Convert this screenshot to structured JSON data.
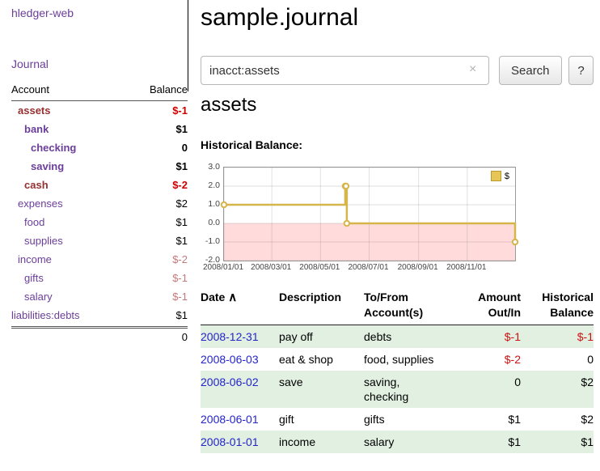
{
  "app": {
    "brand": "hledger-web",
    "nav": {
      "journal": "Journal"
    }
  },
  "sidebar": {
    "header": {
      "account": "Account",
      "balance": "Balance"
    },
    "accounts": [
      {
        "name": "assets",
        "indent": 1,
        "bold": true,
        "color": "maroon",
        "balance": "$-1",
        "balance_color": "negative",
        "balance_bold": true
      },
      {
        "name": "bank",
        "indent": 2,
        "bold": true,
        "color": "purple",
        "balance": "$1",
        "balance_color": "normal",
        "balance_bold": true
      },
      {
        "name": "checking",
        "indent": 3,
        "bold": true,
        "color": "purple",
        "balance": "0",
        "balance_color": "normal",
        "balance_bold": true
      },
      {
        "name": "saving",
        "indent": 3,
        "bold": true,
        "color": "purple",
        "balance": "$1",
        "balance_color": "normal",
        "balance_bold": true
      },
      {
        "name": "cash",
        "indent": 2,
        "bold": true,
        "color": "maroon",
        "balance": "$-2",
        "balance_color": "negative",
        "balance_bold": true
      },
      {
        "name": "expenses",
        "indent": 1,
        "bold": false,
        "color": "purple",
        "balance": "$2",
        "balance_color": "normal",
        "balance_bold": false
      },
      {
        "name": "food",
        "indent": 2,
        "bold": false,
        "color": "purple",
        "balance": "$1",
        "balance_color": "normal",
        "balance_bold": false
      },
      {
        "name": "supplies",
        "indent": 2,
        "bold": false,
        "color": "purple",
        "balance": "$1",
        "balance_color": "normal",
        "balance_bold": false
      },
      {
        "name": "income",
        "indent": 1,
        "bold": false,
        "color": "purple",
        "balance": "$-2",
        "balance_color": "negative-soft",
        "balance_bold": false
      },
      {
        "name": "gifts",
        "indent": 2,
        "bold": false,
        "color": "purple",
        "balance": "$-1",
        "balance_color": "negative-soft",
        "balance_bold": false
      },
      {
        "name": "salary",
        "indent": 2,
        "bold": false,
        "color": "purple",
        "balance": "$-1",
        "balance_color": "negative-soft",
        "balance_bold": false
      },
      {
        "name": "liabilities:debts",
        "indent": 0,
        "bold": false,
        "color": "purple",
        "balance": "$1",
        "balance_color": "normal",
        "balance_bold": false
      }
    ],
    "total": "0"
  },
  "main": {
    "title": "sample.journal",
    "search": {
      "value": "inacct:assets",
      "clear_icon": "×",
      "search_button": "Search",
      "help_button": "?"
    },
    "account_heading": "assets",
    "chart_title": "Historical Balance:"
  },
  "chart_data": {
    "type": "line",
    "style": "step",
    "title": "Historical Balance of assets",
    "series": [
      {
        "name": "$",
        "color": "#d6b54a",
        "points": [
          {
            "date": "2008-01-01",
            "value": 1
          },
          {
            "date": "2008-06-01",
            "value": 2
          },
          {
            "date": "2008-06-02",
            "value": 2
          },
          {
            "date": "2008-06-03",
            "value": 0
          },
          {
            "date": "2008-12-31",
            "value": -1
          }
        ]
      }
    ],
    "x_range": [
      "2008-01-01",
      "2008-12-31"
    ],
    "y_range": [
      -2,
      3
    ],
    "y_ticks": [
      3,
      2,
      1,
      0,
      -1,
      -2
    ],
    "x_ticks": [
      "2008/01/01",
      "2008/03/01",
      "2008/05/01",
      "2008/07/01",
      "2008/09/01",
      "2008/11/01"
    ],
    "legend": {
      "label": "$",
      "position": "top-right"
    },
    "negative_region_color": "#ffdbdb",
    "grid": true
  },
  "register": {
    "headers": {
      "date": "Date",
      "sort_icon": "∧",
      "description": "Description",
      "account": "To/From\nAccount(s)",
      "amount": "Amount\nOut/In",
      "balance": "Historical\nBalance"
    },
    "rows": [
      {
        "date": "2008-12-31",
        "description": "pay off",
        "accounts": "debts",
        "amount": "$-1",
        "amount_negative": true,
        "balance": "$-1",
        "balance_negative": true,
        "shaded": true
      },
      {
        "date": "2008-06-03",
        "description": "eat & shop",
        "accounts": "food, supplies",
        "amount": "$-2",
        "amount_negative": true,
        "balance": "0",
        "balance_negative": false,
        "shaded": false
      },
      {
        "date": "2008-06-02",
        "description": "save",
        "accounts": "saving,\nchecking",
        "amount": "0",
        "amount_negative": false,
        "balance": "$2",
        "balance_negative": false,
        "shaded": true
      },
      {
        "date": "2008-06-01",
        "description": "gift",
        "accounts": "gifts",
        "amount": "$1",
        "amount_negative": false,
        "balance": "$2",
        "balance_negative": false,
        "shaded": false
      },
      {
        "date": "2008-01-01",
        "description": "income",
        "accounts": "salary",
        "amount": "$1",
        "amount_negative": false,
        "balance": "$1",
        "balance_negative": false,
        "shaded": true
      }
    ]
  }
}
